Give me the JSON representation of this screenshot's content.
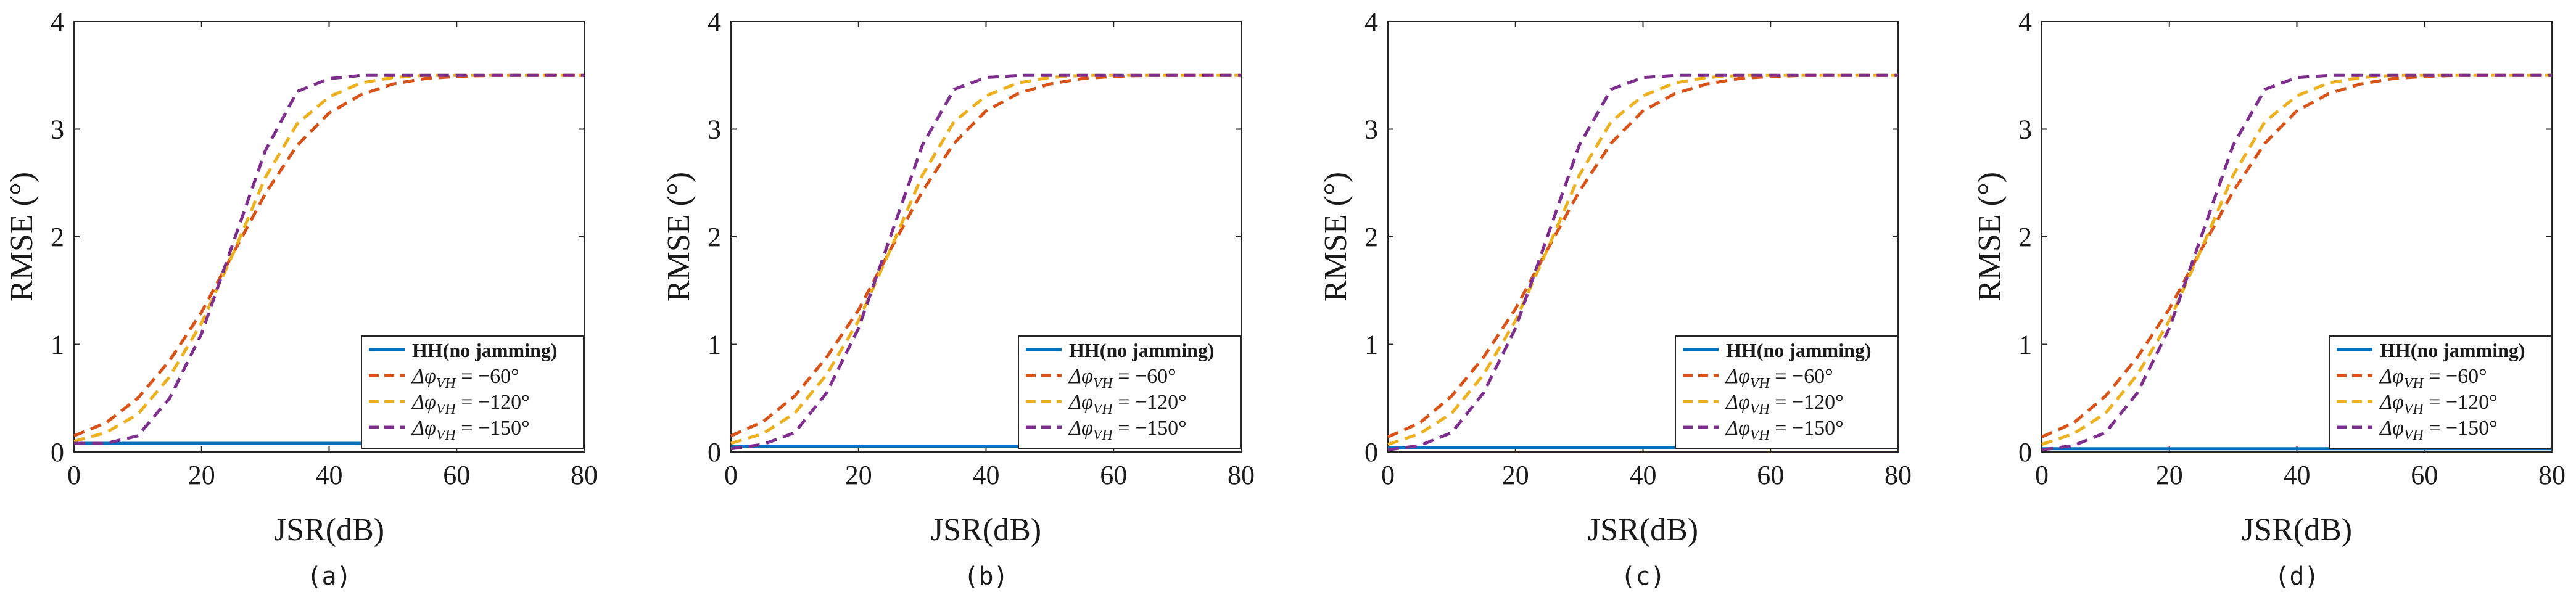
{
  "chart_data": [
    {
      "type": "line",
      "panel_label": "(a)",
      "xlabel": "JSR(dB)",
      "ylabel": "RMSE (°)",
      "xlim": [
        0,
        80
      ],
      "ylim": [
        0,
        4
      ],
      "xticks": [
        0,
        20,
        40,
        60,
        80
      ],
      "yticks": [
        0,
        1,
        2,
        3,
        4
      ],
      "grid": false,
      "legend_position": "bottom-right",
      "x": [
        0,
        5,
        10,
        15,
        20,
        25,
        30,
        35,
        40,
        45,
        50,
        55,
        60,
        65,
        70,
        75,
        80
      ],
      "series": [
        {
          "name": "HH(no jamming)",
          "color": "#0072BD",
          "style": "solid",
          "values": [
            0.08,
            0.08,
            0.08,
            0.08,
            0.08,
            0.08,
            0.08,
            0.08,
            0.08,
            0.08,
            0.08,
            0.08,
            0.08,
            0.08,
            0.08,
            0.08,
            0.08
          ]
        },
        {
          "name": "Δφ_VH = −60°",
          "color": "#D95319",
          "style": "dashed",
          "values": [
            0.15,
            0.27,
            0.5,
            0.85,
            1.3,
            1.85,
            2.4,
            2.85,
            3.15,
            3.32,
            3.42,
            3.47,
            3.49,
            3.5,
            3.5,
            3.5,
            3.5
          ]
        },
        {
          "name": "Δφ_VH = −120°",
          "color": "#EDB120",
          "style": "dashed",
          "values": [
            0.1,
            0.18,
            0.35,
            0.7,
            1.2,
            1.85,
            2.55,
            3.05,
            3.3,
            3.43,
            3.48,
            3.5,
            3.5,
            3.5,
            3.5,
            3.5,
            3.5
          ]
        },
        {
          "name": "Δφ_VH = −150°",
          "color": "#7E2F8E",
          "style": "dashed",
          "values": [
            0.08,
            0.08,
            0.15,
            0.5,
            1.1,
            1.95,
            2.8,
            3.35,
            3.47,
            3.5,
            3.5,
            3.5,
            3.5,
            3.5,
            3.5,
            3.5,
            3.5
          ]
        }
      ]
    },
    {
      "type": "line",
      "panel_label": "(b)",
      "xlabel": "JSR(dB)",
      "ylabel": "RMSE (°)",
      "xlim": [
        0,
        80
      ],
      "ylim": [
        0,
        4
      ],
      "xticks": [
        0,
        20,
        40,
        60,
        80
      ],
      "yticks": [
        0,
        1,
        2,
        3,
        4
      ],
      "grid": false,
      "legend_position": "bottom-right",
      "x": [
        0,
        5,
        10,
        15,
        20,
        25,
        30,
        35,
        40,
        45,
        50,
        55,
        60,
        65,
        70,
        75,
        80
      ],
      "series": [
        {
          "name": "HH(no jamming)",
          "color": "#0072BD",
          "style": "solid",
          "values": [
            0.05,
            0.05,
            0.05,
            0.05,
            0.05,
            0.05,
            0.05,
            0.05,
            0.05,
            0.05,
            0.05,
            0.05,
            0.05,
            0.05,
            0.05,
            0.05,
            0.05
          ]
        },
        {
          "name": "Δφ_VH = −60°",
          "color": "#D95319",
          "style": "dashed",
          "values": [
            0.15,
            0.28,
            0.52,
            0.88,
            1.32,
            1.88,
            2.42,
            2.87,
            3.17,
            3.33,
            3.42,
            3.47,
            3.49,
            3.5,
            3.5,
            3.5,
            3.5
          ]
        },
        {
          "name": "Δφ_VH = −120°",
          "color": "#EDB120",
          "style": "dashed",
          "values": [
            0.08,
            0.17,
            0.36,
            0.72,
            1.22,
            1.88,
            2.57,
            3.07,
            3.31,
            3.43,
            3.48,
            3.5,
            3.5,
            3.5,
            3.5,
            3.5,
            3.5
          ]
        },
        {
          "name": "Δφ_VH = −150°",
          "color": "#7E2F8E",
          "style": "dashed",
          "values": [
            0.03,
            0.07,
            0.18,
            0.55,
            1.15,
            2.0,
            2.85,
            3.37,
            3.48,
            3.5,
            3.5,
            3.5,
            3.5,
            3.5,
            3.5,
            3.5,
            3.5
          ]
        }
      ]
    },
    {
      "type": "line",
      "panel_label": "(c)",
      "xlabel": "JSR(dB)",
      "ylabel": "RMSE (°)",
      "xlim": [
        0,
        80
      ],
      "ylim": [
        0,
        4
      ],
      "xticks": [
        0,
        20,
        40,
        60,
        80
      ],
      "yticks": [
        0,
        1,
        2,
        3,
        4
      ],
      "grid": false,
      "legend_position": "bottom-right",
      "x": [
        0,
        5,
        10,
        15,
        20,
        25,
        30,
        35,
        40,
        45,
        50,
        55,
        60,
        65,
        70,
        75,
        80
      ],
      "series": [
        {
          "name": "HH(no jamming)",
          "color": "#0072BD",
          "style": "solid",
          "values": [
            0.04,
            0.04,
            0.04,
            0.04,
            0.04,
            0.04,
            0.04,
            0.04,
            0.04,
            0.04,
            0.04,
            0.04,
            0.04,
            0.04,
            0.04,
            0.04,
            0.04
          ]
        },
        {
          "name": "Δφ_VH = −60°",
          "color": "#D95319",
          "style": "dashed",
          "values": [
            0.14,
            0.27,
            0.52,
            0.88,
            1.33,
            1.88,
            2.42,
            2.87,
            3.17,
            3.33,
            3.42,
            3.47,
            3.49,
            3.5,
            3.5,
            3.5,
            3.5
          ]
        },
        {
          "name": "Δφ_VH = −120°",
          "color": "#EDB120",
          "style": "dashed",
          "values": [
            0.07,
            0.17,
            0.36,
            0.72,
            1.22,
            1.88,
            2.57,
            3.07,
            3.31,
            3.43,
            3.48,
            3.5,
            3.5,
            3.5,
            3.5,
            3.5,
            3.5
          ]
        },
        {
          "name": "Δφ_VH = −150°",
          "color": "#7E2F8E",
          "style": "dashed",
          "values": [
            0.02,
            0.06,
            0.18,
            0.55,
            1.15,
            2.0,
            2.85,
            3.37,
            3.48,
            3.5,
            3.5,
            3.5,
            3.5,
            3.5,
            3.5,
            3.5,
            3.5
          ]
        }
      ]
    },
    {
      "type": "line",
      "panel_label": "(d)",
      "xlabel": "JSR(dB)",
      "ylabel": "RMSE (°)",
      "xlim": [
        0,
        80
      ],
      "ylim": [
        0,
        4
      ],
      "xticks": [
        0,
        20,
        40,
        60,
        80
      ],
      "yticks": [
        0,
        1,
        2,
        3,
        4
      ],
      "grid": false,
      "legend_position": "bottom-right",
      "x": [
        0,
        5,
        10,
        15,
        20,
        25,
        30,
        35,
        40,
        45,
        50,
        55,
        60,
        65,
        70,
        75,
        80
      ],
      "series": [
        {
          "name": "HH(no jamming)",
          "color": "#0072BD",
          "style": "solid",
          "values": [
            0.03,
            0.03,
            0.03,
            0.03,
            0.03,
            0.03,
            0.03,
            0.03,
            0.03,
            0.03,
            0.03,
            0.03,
            0.03,
            0.03,
            0.03,
            0.03,
            0.03
          ]
        },
        {
          "name": "Δφ_VH = −60°",
          "color": "#D95319",
          "style": "dashed",
          "values": [
            0.14,
            0.27,
            0.52,
            0.88,
            1.33,
            1.88,
            2.42,
            2.87,
            3.17,
            3.33,
            3.42,
            3.47,
            3.49,
            3.5,
            3.5,
            3.5,
            3.5
          ]
        },
        {
          "name": "Δφ_VH = −120°",
          "color": "#EDB120",
          "style": "dashed",
          "values": [
            0.07,
            0.17,
            0.36,
            0.72,
            1.22,
            1.88,
            2.57,
            3.07,
            3.31,
            3.43,
            3.48,
            3.5,
            3.5,
            3.5,
            3.5,
            3.5,
            3.5
          ]
        },
        {
          "name": "Δφ_VH = −150°",
          "color": "#7E2F8E",
          "style": "dashed",
          "values": [
            0.02,
            0.06,
            0.18,
            0.55,
            1.15,
            2.0,
            2.85,
            3.37,
            3.48,
            3.5,
            3.5,
            3.5,
            3.5,
            3.5,
            3.5,
            3.5,
            3.5
          ]
        }
      ]
    }
  ]
}
